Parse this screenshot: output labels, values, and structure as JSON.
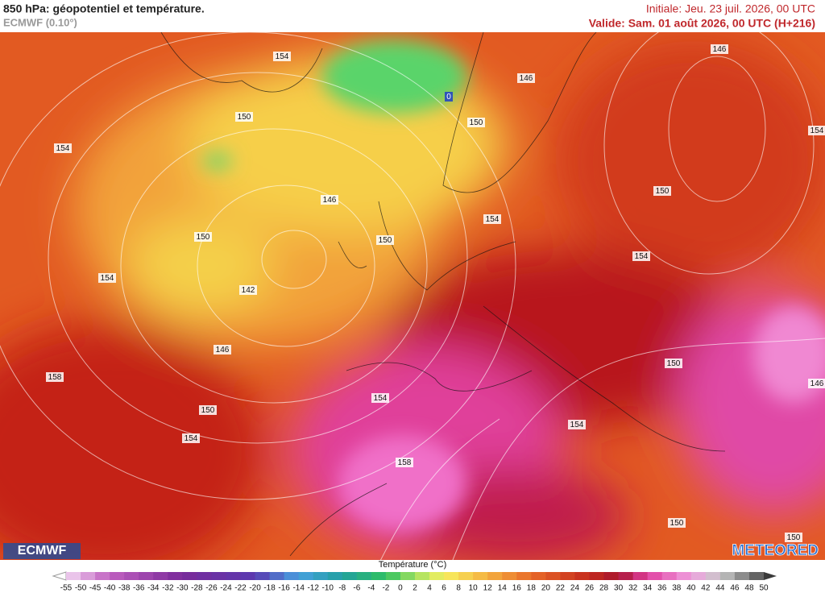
{
  "header": {
    "title": "850 hPa: géopotentiel et température.",
    "model": "ECMWF (0.10°)",
    "initial": "Initiale: Jeu. 23 juil. 2026, 00 UTC",
    "valid": "Valide: Sam. 01 août 2026, 00 UTC (H+216)"
  },
  "contour_labels": [
    "154",
    "146",
    "146",
    "150",
    "150",
    "154",
    "154",
    "150",
    "146",
    "154",
    "150",
    "150",
    "154",
    "154",
    "142",
    "146",
    "150",
    "158",
    "146",
    "154",
    "150",
    "154",
    "154",
    "158",
    "150",
    "150",
    "0"
  ],
  "logos": {
    "left": "ECMWF",
    "right": "METEORED"
  },
  "colorbar": {
    "label": "Température (°C)",
    "ticks": [
      -55,
      -50,
      -45,
      -40,
      -38,
      -36,
      -34,
      -32,
      -30,
      -28,
      -26,
      -24,
      -22,
      -20,
      -18,
      -16,
      -14,
      -12,
      -10,
      -8,
      -6,
      -4,
      -2,
      0,
      2,
      4,
      6,
      8,
      10,
      12,
      14,
      16,
      18,
      20,
      22,
      24,
      26,
      28,
      30,
      32,
      34,
      36,
      38,
      40,
      42,
      44,
      46,
      48,
      50
    ]
  }
}
